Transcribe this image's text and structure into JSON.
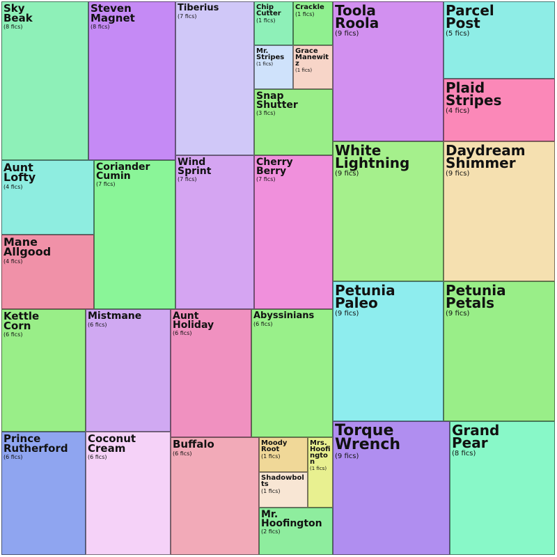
{
  "chart_data": {
    "type": "treemap",
    "unit_label": "fics",
    "items": [
      {
        "name": "Sky Beak",
        "value": 8,
        "color": "#8ef0b8"
      },
      {
        "name": "Steven Magnet",
        "value": 8,
        "color": "#c58af5"
      },
      {
        "name": "Tiberius",
        "value": 7,
        "color": "#d0c8f8"
      },
      {
        "name": "Chip Cutter",
        "value": 1,
        "color": "#8ef0b8"
      },
      {
        "name": "Crackle",
        "value": 1,
        "color": "#90f090"
      },
      {
        "name": "Mr. Stripes",
        "value": 1,
        "color": "#cfe2fb"
      },
      {
        "name": "Grace Manewitz",
        "value": 1,
        "color": "#f7d5c8"
      },
      {
        "name": "Snap Shutter",
        "value": 3,
        "color": "#99ee88"
      },
      {
        "name": "Aunt Lofty",
        "value": 4,
        "color": "#8eede0"
      },
      {
        "name": "Coriander Cumin",
        "value": 7,
        "color": "#8af598"
      },
      {
        "name": "Mane Allgood",
        "value": 4,
        "color": "#f091a8"
      },
      {
        "name": "Wind Sprint",
        "value": 7,
        "color": "#d5a5f2"
      },
      {
        "name": "Cherry Berry",
        "value": 7,
        "color": "#f090dc"
      },
      {
        "name": "Kettle Corn",
        "value": 6,
        "color": "#99ee88"
      },
      {
        "name": "Mistmane",
        "value": 6,
        "color": "#d0a9f2"
      },
      {
        "name": "Aunt Holiday",
        "value": 6,
        "color": "#f091c0"
      },
      {
        "name": "Abyssinians",
        "value": 6,
        "color": "#99f08a"
      },
      {
        "name": "Prince Rutherford",
        "value": 6,
        "color": "#8fa5f0"
      },
      {
        "name": "Coconut Cream",
        "value": 6,
        "color": "#f5d2f8"
      },
      {
        "name": "Buffalo",
        "value": 6,
        "color": "#f2aab8"
      },
      {
        "name": "Moody Root",
        "value": 1,
        "color": "#f0d898"
      },
      {
        "name": "Shadowbolts",
        "value": 1,
        "color": "#f8e6d4"
      },
      {
        "name": "Mrs. Hoofington",
        "value": 1,
        "color": "#e8f090"
      },
      {
        "name": "Mr. Hoofington",
        "value": 2,
        "color": "#8eed9e"
      },
      {
        "name": "Toola Roola",
        "value": 9,
        "color": "#d290f0"
      },
      {
        "name": "Parcel Post",
        "value": 5,
        "color": "#8eede6"
      },
      {
        "name": "Plaid Stripes",
        "value": 4,
        "color": "#fb88b8"
      },
      {
        "name": "White Lightning",
        "value": 9,
        "color": "#a5f08c"
      },
      {
        "name": "Daydream Shimmer",
        "value": 9,
        "color": "#f5e0b0"
      },
      {
        "name": "Petunia Paleo",
        "value": 9,
        "color": "#8eedee"
      },
      {
        "name": "Petunia Petals",
        "value": 9,
        "color": "#99ee88"
      },
      {
        "name": "Torque Wrench",
        "value": 9,
        "color": "#b08ef0"
      },
      {
        "name": "Grand Pear",
        "value": 8,
        "color": "#88f8c8"
      }
    ]
  }
}
